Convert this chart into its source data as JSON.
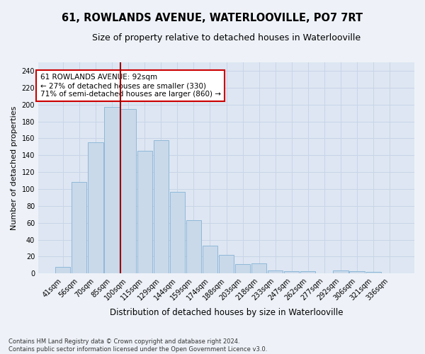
{
  "title": "61, ROWLANDS AVENUE, WATERLOOVILLE, PO7 7RT",
  "subtitle": "Size of property relative to detached houses in Waterlooville",
  "xlabel": "Distribution of detached houses by size in Waterlooville",
  "ylabel": "Number of detached properties",
  "footnote1": "Contains HM Land Registry data © Crown copyright and database right 2024.",
  "footnote2": "Contains public sector information licensed under the Open Government Licence v3.0.",
  "bar_labels": [
    "41sqm",
    "56sqm",
    "70sqm",
    "85sqm",
    "100sqm",
    "115sqm",
    "129sqm",
    "144sqm",
    "159sqm",
    "174sqm",
    "188sqm",
    "203sqm",
    "218sqm",
    "233sqm",
    "247sqm",
    "262sqm",
    "277sqm",
    "292sqm",
    "306sqm",
    "321sqm",
    "336sqm"
  ],
  "bar_values": [
    8,
    108,
    155,
    197,
    195,
    145,
    158,
    97,
    63,
    33,
    22,
    11,
    12,
    4,
    3,
    3,
    0,
    4,
    3,
    2,
    0
  ],
  "bar_color": "#c9d9ea",
  "bar_edge_color": "#8fb8d8",
  "vline_color": "#990000",
  "annotation_text": "61 ROWLANDS AVENUE: 92sqm\n← 27% of detached houses are smaller (330)\n71% of semi-detached houses are larger (860) →",
  "annotation_box_color": "#ffffff",
  "annotation_box_edge": "#cc0000",
  "ylim": [
    0,
    250
  ],
  "yticks": [
    0,
    20,
    40,
    60,
    80,
    100,
    120,
    140,
    160,
    180,
    200,
    220,
    240
  ],
  "grid_color": "#c8d4e8",
  "bg_color": "#dde6f2",
  "fig_bg_color": "#eef2f8",
  "title_fontsize": 10.5,
  "subtitle_fontsize": 9,
  "ylabel_fontsize": 8,
  "xlabel_fontsize": 8.5,
  "tick_fontsize": 7,
  "annot_fontsize": 7.5,
  "footnote_fontsize": 6
}
